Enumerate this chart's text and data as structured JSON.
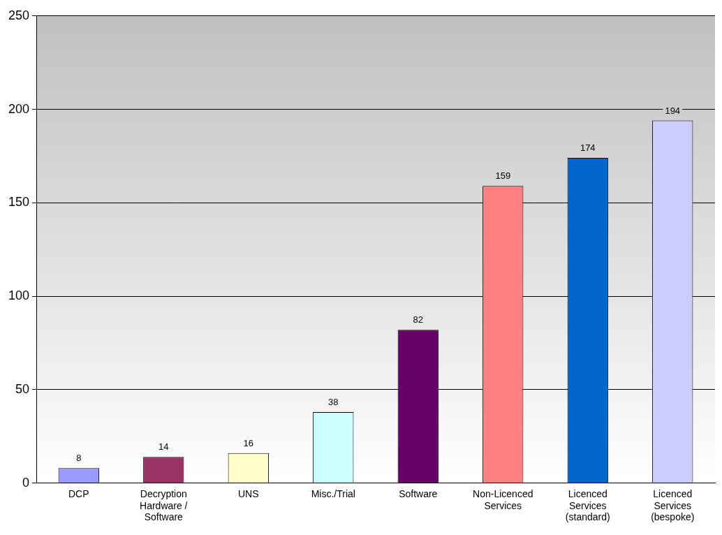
{
  "chart_data": {
    "type": "bar",
    "categories": [
      "DCP",
      "Decryption Hardware / Software",
      "UNS",
      "Misc./Trial",
      "Software",
      "Non-Licenced Services",
      "Licenced Services (standard)",
      "Licenced Services (bespoke)"
    ],
    "values": [
      8,
      14,
      16,
      38,
      82,
      159,
      174,
      194
    ],
    "colors": [
      "#9999ff",
      "#993366",
      "#ffffcc",
      "#ccffff",
      "#660066",
      "#ff8080",
      "#0066cc",
      "#ccccff"
    ],
    "ylim": [
      0,
      250
    ],
    "yticks": [
      0,
      50,
      100,
      150,
      200,
      250
    ],
    "grid": "y",
    "data_labels": true,
    "legend": false
  }
}
